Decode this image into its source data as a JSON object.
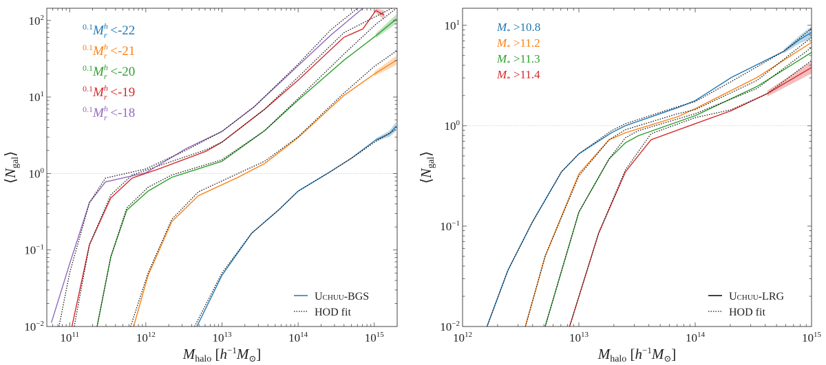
{
  "chart_data": [
    {
      "type": "line",
      "panel": "left",
      "xscale": "log",
      "yscale": "log",
      "xlim_log10": [
        10.7,
        15.3
      ],
      "ylim_log10": [
        -2,
        2.16
      ],
      "xticks_log10": [
        11,
        12,
        13,
        14,
        15
      ],
      "yticks_log10": [
        -2,
        -1,
        0,
        1,
        2
      ],
      "xlabel": {
        "symbol": "M",
        "sub": "halo",
        "unit_open": " [",
        "h": "h",
        "h_exp": "−1",
        "msun": "M",
        "msun_sub": "⊙",
        "unit_close": "]"
      },
      "ylabel": {
        "open": "⟨",
        "symbol": "N",
        "sub": "gal",
        "close": "⟩"
      },
      "reference_line_log10": 0,
      "legend_style": {
        "placement": "bottom-right",
        "sim_label": "Uchuu-BGS",
        "fit_label": "HOD fit",
        "sim_color": "#1f77b4"
      },
      "series": [
        {
          "name": "0.1Mrh<-22",
          "label": {
            "prefix": "0.1",
            "symbol": "M",
            "sup": "h",
            "sub": "r",
            "cut": " <-22"
          },
          "color": "#1f77b4",
          "points": [
            [
              12.67,
              -2
            ],
            [
              13.0,
              -1.33
            ],
            [
              13.39,
              -0.78
            ],
            [
              13.74,
              -0.48
            ],
            [
              14.0,
              -0.23
            ],
            [
              14.4,
              0.01
            ],
            [
              14.7,
              0.2
            ],
            [
              15.02,
              0.44
            ],
            [
              15.2,
              0.52
            ],
            [
              15.29,
              0.62
            ]
          ],
          "fit": [
            [
              12.64,
              -2
            ],
            [
              13.0,
              -1.3
            ],
            [
              13.39,
              -0.78
            ],
            [
              13.74,
              -0.48
            ],
            [
              14.0,
              -0.23
            ],
            [
              14.4,
              0.01
            ],
            [
              14.7,
              0.2
            ],
            [
              15.02,
              0.42
            ],
            [
              15.29,
              0.58
            ]
          ]
        },
        {
          "name": "0.1Mrh<-21",
          "label": {
            "prefix": "0.1",
            "symbol": "M",
            "sup": "h",
            "sub": "r",
            "cut": " <-21"
          },
          "color": "#ff7f0e",
          "points": [
            [
              11.84,
              -2
            ],
            [
              12.03,
              -1.33
            ],
            [
              12.34,
              -0.63
            ],
            [
              12.69,
              -0.29
            ],
            [
              13.21,
              -0.05
            ],
            [
              13.56,
              0.13
            ],
            [
              14.0,
              0.47
            ],
            [
              14.6,
              1.02
            ],
            [
              15.0,
              1.3
            ],
            [
              15.29,
              1.48
            ]
          ],
          "fit": [
            [
              11.8,
              -2
            ],
            [
              12.03,
              -1.3
            ],
            [
              12.34,
              -0.6
            ],
            [
              12.69,
              -0.24
            ],
            [
              13.21,
              0.0
            ],
            [
              13.56,
              0.16
            ],
            [
              14.0,
              0.48
            ],
            [
              14.6,
              1.05
            ],
            [
              15.0,
              1.4
            ],
            [
              15.29,
              1.6
            ]
          ]
        },
        {
          "name": "0.1Mrh<-20",
          "label": {
            "prefix": "0.1",
            "symbol": "M",
            "sup": "h",
            "sub": "r",
            "cut": " <-20"
          },
          "color": "#2ca02c",
          "points": [
            [
              11.36,
              -2
            ],
            [
              11.54,
              -1.09
            ],
            [
              11.75,
              -0.48
            ],
            [
              12.03,
              -0.23
            ],
            [
              12.34,
              -0.05
            ],
            [
              13.0,
              0.16
            ],
            [
              13.56,
              0.56
            ],
            [
              14.0,
              0.96
            ],
            [
              14.6,
              1.48
            ],
            [
              15.02,
              1.8
            ],
            [
              15.29,
              2.02
            ]
          ],
          "fit": [
            [
              11.36,
              -2
            ],
            [
              11.54,
              -1.09
            ],
            [
              11.75,
              -0.45
            ],
            [
              12.03,
              -0.18
            ],
            [
              12.34,
              -0.02
            ],
            [
              13.0,
              0.18
            ],
            [
              13.56,
              0.56
            ],
            [
              14.0,
              0.98
            ],
            [
              14.6,
              1.56
            ],
            [
              15.02,
              1.95
            ],
            [
              15.29,
              2.16
            ]
          ]
        },
        {
          "name": "0.1Mrh<-19",
          "label": {
            "prefix": "0.1",
            "symbol": "M",
            "sup": "h",
            "sub": "r",
            "cut": " <-19"
          },
          "color": "#d62728",
          "points": [
            [
              11.03,
              -2
            ],
            [
              11.26,
              -0.93
            ],
            [
              11.54,
              -0.32
            ],
            [
              11.82,
              -0.06
            ],
            [
              12.17,
              0.06
            ],
            [
              12.79,
              0.29
            ],
            [
              13.0,
              0.41
            ],
            [
              13.56,
              0.84
            ],
            [
              14.0,
              1.22
            ],
            [
              14.6,
              1.78
            ],
            [
              14.85,
              1.89
            ],
            [
              15.02,
              2.13
            ],
            [
              15.13,
              2.07
            ]
          ],
          "fit": [
            [
              11.06,
              -2
            ],
            [
              11.26,
              -0.93
            ],
            [
              11.54,
              -0.28
            ],
            [
              11.82,
              -0.02
            ],
            [
              12.17,
              0.1
            ],
            [
              12.79,
              0.31
            ],
            [
              13.0,
              0.41
            ],
            [
              13.56,
              0.84
            ],
            [
              14.0,
              1.26
            ],
            [
              14.6,
              1.84
            ],
            [
              15.23,
              2.16
            ]
          ]
        },
        {
          "name": "0.1Mrh<-18",
          "label": {
            "prefix": "0.1",
            "symbol": "M",
            "sup": "h",
            "sub": "r",
            "cut": " <-18"
          },
          "color": "#9467bd",
          "points": [
            [
              10.76,
              -1.95
            ],
            [
              11.0,
              -1.18
            ],
            [
              11.26,
              -0.38
            ],
            [
              11.47,
              -0.11
            ],
            [
              12.0,
              0.01
            ],
            [
              12.52,
              0.32
            ],
            [
              13.0,
              0.55
            ],
            [
              13.42,
              0.87
            ],
            [
              14.0,
              1.41
            ],
            [
              14.43,
              1.81
            ],
            [
              14.85,
              2.16
            ]
          ],
          "fit": [
            [
              10.86,
              -2
            ],
            [
              11.0,
              -1.3
            ],
            [
              11.26,
              -0.38
            ],
            [
              11.47,
              -0.06
            ],
            [
              12.0,
              0.06
            ],
            [
              12.52,
              0.3
            ],
            [
              13.0,
              0.55
            ],
            [
              13.42,
              0.87
            ],
            [
              14.0,
              1.43
            ],
            [
              14.43,
              1.88
            ],
            [
              14.78,
              2.16
            ]
          ]
        }
      ]
    },
    {
      "type": "line",
      "panel": "right",
      "xscale": "log",
      "yscale": "log",
      "xlim_log10": [
        12,
        15
      ],
      "ylim_log10": [
        -2,
        1.17
      ],
      "xticks_log10": [
        12,
        13,
        14,
        15
      ],
      "yticks_log10": [
        -2,
        -1,
        0,
        1
      ],
      "xlabel": {
        "symbol": "M",
        "sub": "halo",
        "unit_open": " [",
        "h": "h",
        "h_exp": "−1",
        "msun": "M",
        "msun_sub": "⊙",
        "unit_close": "]"
      },
      "ylabel": {
        "open": "⟨",
        "symbol": "N",
        "sub": "gal",
        "close": "⟩"
      },
      "reference_line_log10": 0,
      "legend_style": {
        "placement": "bottom-right",
        "sim_label": "Uchuu-LRG",
        "fit_label": "HOD fit",
        "sim_color": "#000000"
      },
      "series": [
        {
          "name": "M*>10.8",
          "label": {
            "symbol": "M",
            "sub": "*",
            "cut": " >10.8"
          },
          "color": "#1f77b4",
          "points": [
            [
              12.21,
              -2
            ],
            [
              12.39,
              -1.44
            ],
            [
              12.6,
              -0.96
            ],
            [
              12.85,
              -0.46
            ],
            [
              13.0,
              -0.28
            ],
            [
              13.28,
              -0.07
            ],
            [
              13.4,
              0.0
            ],
            [
              13.85,
              0.18
            ],
            [
              14.0,
              0.25
            ],
            [
              14.31,
              0.48
            ],
            [
              14.76,
              0.74
            ],
            [
              14.9,
              0.86
            ],
            [
              15.0,
              0.93
            ]
          ],
          "fit": [
            [
              12.21,
              -2
            ],
            [
              12.39,
              -1.44
            ],
            [
              12.6,
              -0.96
            ],
            [
              12.85,
              -0.46
            ],
            [
              13.0,
              -0.28
            ],
            [
              13.28,
              -0.05
            ],
            [
              13.4,
              0.02
            ],
            [
              13.85,
              0.19
            ],
            [
              14.0,
              0.24
            ],
            [
              14.31,
              0.44
            ],
            [
              14.76,
              0.74
            ],
            [
              15.0,
              0.97
            ]
          ]
        },
        {
          "name": "M*>11.2",
          "label": {
            "symbol": "M",
            "sub": "*",
            "cut": " >11.2"
          },
          "color": "#ff7f0e",
          "points": [
            [
              12.54,
              -2
            ],
            [
              12.71,
              -1.3
            ],
            [
              13.0,
              -0.48
            ],
            [
              13.26,
              -0.14
            ],
            [
              13.4,
              -0.07
            ],
            [
              13.85,
              0.09
            ],
            [
              14.0,
              0.17
            ],
            [
              14.53,
              0.48
            ],
            [
              15.0,
              0.83
            ]
          ],
          "fit": [
            [
              12.54,
              -2
            ],
            [
              12.71,
              -1.3
            ],
            [
              13.0,
              -0.5
            ],
            [
              13.26,
              -0.14
            ],
            [
              13.4,
              -0.04
            ],
            [
              13.85,
              0.12
            ],
            [
              14.0,
              0.16
            ],
            [
              14.53,
              0.45
            ],
            [
              15.0,
              0.88
            ]
          ]
        },
        {
          "name": "M*>11.3",
          "label": {
            "symbol": "M",
            "sub": "*",
            "cut": " >11.3"
          },
          "color": "#2ca02c",
          "points": [
            [
              12.71,
              -2
            ],
            [
              13.0,
              -0.86
            ],
            [
              13.26,
              -0.33
            ],
            [
              13.4,
              -0.17
            ],
            [
              13.51,
              -0.1
            ],
            [
              14.0,
              0.1
            ],
            [
              14.53,
              0.39
            ],
            [
              15.0,
              0.73
            ]
          ],
          "fit": [
            [
              12.71,
              -2
            ],
            [
              13.0,
              -0.86
            ],
            [
              13.26,
              -0.33
            ],
            [
              13.4,
              -0.12
            ],
            [
              13.51,
              -0.05
            ],
            [
              14.0,
              0.12
            ],
            [
              14.53,
              0.37
            ],
            [
              15.0,
              0.78
            ]
          ]
        },
        {
          "name": "M*>11.4",
          "label": {
            "symbol": "M",
            "sub": "*",
            "cut": " >11.4"
          },
          "color": "#d62728",
          "points": [
            [
              12.92,
              -2
            ],
            [
              13.17,
              -1.07
            ],
            [
              13.4,
              -0.46
            ],
            [
              13.62,
              -0.14
            ],
            [
              14.0,
              0.02
            ],
            [
              14.31,
              0.15
            ],
            [
              14.62,
              0.32
            ],
            [
              15.0,
              0.58
            ]
          ],
          "fit": [
            [
              12.92,
              -2
            ],
            [
              13.17,
              -1.07
            ],
            [
              13.4,
              -0.44
            ],
            [
              13.62,
              -0.08
            ],
            [
              14.0,
              0.08
            ],
            [
              14.31,
              0.16
            ],
            [
              14.62,
              0.32
            ],
            [
              15.0,
              0.65
            ]
          ]
        }
      ]
    }
  ]
}
